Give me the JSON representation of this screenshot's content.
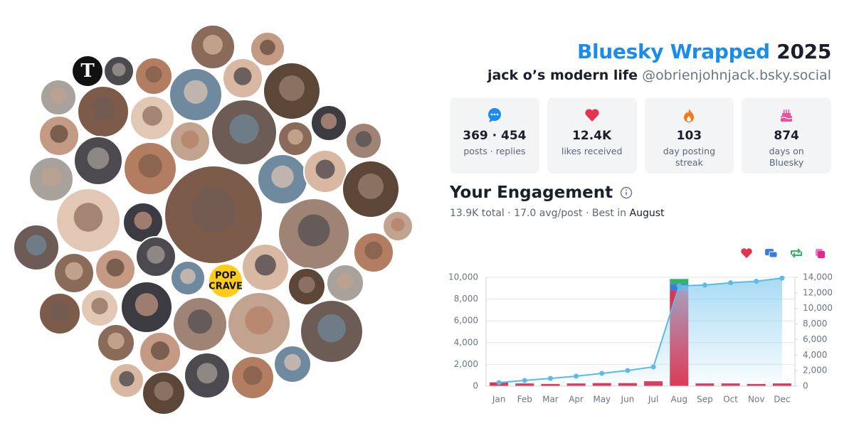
{
  "header": {
    "title": "Bluesky Wrapped",
    "year": "2025",
    "display_name": "jack o’s modern life",
    "handle": "@obrienjohnjack.bsky.social"
  },
  "avatars": {
    "logo_letter": "T",
    "badge_text": [
      "POP",
      "CRAVE"
    ]
  },
  "stats": [
    {
      "value": "369 · 454",
      "label": "posts · replies"
    },
    {
      "value": "12.4K",
      "label": "likes received"
    },
    {
      "value": "103",
      "label": "day posting streak"
    },
    {
      "value": "874",
      "label": "days on Bluesky"
    }
  ],
  "engagement": {
    "title": "Your Engagement",
    "summary": "13.9K total · 17.0 avg/post · Best in",
    "best_month": "August"
  },
  "chart_data": {
    "type": "bar",
    "categories": [
      "Jan",
      "Feb",
      "Mar",
      "Apr",
      "May",
      "Jun",
      "Jul",
      "Aug",
      "Sep",
      "Oct",
      "Nov",
      "Dec"
    ],
    "stacked": true,
    "series": [
      {
        "color": "#e0344f",
        "values": [
          350,
          250,
          200,
          250,
          280,
          280,
          450,
          8800,
          250,
          250,
          200,
          250
        ]
      },
      {
        "color": "#3c7be0",
        "values": [
          0,
          0,
          0,
          0,
          0,
          0,
          0,
          600,
          0,
          0,
          0,
          0
        ]
      },
      {
        "color": "#2fb765",
        "values": [
          0,
          0,
          0,
          0,
          0,
          0,
          0,
          450,
          0,
          0,
          0,
          0
        ]
      },
      {
        "type": "line",
        "axis": "y2",
        "color": "#5bbbe6",
        "values": [
          460,
          730,
          1000,
          1280,
          1650,
          2010,
          2470,
          12900,
          13000,
          13300,
          13500,
          13900
        ]
      }
    ],
    "ylim": [
      0,
      10000
    ],
    "yticks": [
      0,
      {
        "value": 2000,
        "label": "2,000"
      },
      {
        "value": 4000,
        "label": "4,000"
      },
      {
        "value": 6000,
        "label": "6,000"
      },
      {
        "value": 8000,
        "label": "8,000"
      },
      {
        "value": 10000,
        "label": "10,000"
      }
    ],
    "y2lim": [
      0,
      14000
    ],
    "y2ticks": [
      0,
      {
        "value": 2000,
        "label": "2,000"
      },
      {
        "value": 4000,
        "label": "4,000"
      },
      {
        "value": 6000,
        "label": "6,000"
      },
      {
        "value": 8000,
        "label": "8,000"
      },
      {
        "value": 10000,
        "label": "10,000"
      },
      {
        "value": 12000,
        "label": "12,000"
      },
      {
        "value": 14000,
        "label": "14,000"
      }
    ],
    "grid": true
  }
}
